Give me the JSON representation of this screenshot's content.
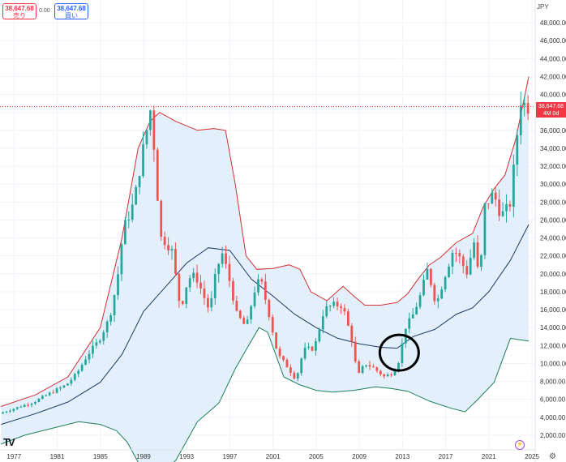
{
  "toolbar": {
    "sell_price": "38,647.68",
    "sell_label": "売り",
    "spread": "0.00",
    "buy_price": "38,647.68",
    "buy_label": "買い"
  },
  "currency": "JPY",
  "last_price": {
    "value": "38,647.68",
    "interval": "4M 0d"
  },
  "colors": {
    "up": "#26a69a",
    "down": "#ef5350",
    "upper_band": "#d32f2f",
    "lower_band": "#1b7f5a",
    "middle_band": "#1e3a5f",
    "band_fill": "#e3f0fb",
    "annotation": "#000000"
  },
  "icons": [
    "tradingview-logo-icon",
    "lightning-icon",
    "gear-icon"
  ],
  "chart_data": {
    "type": "candlestick",
    "interval": "4M",
    "ylim": [
      0,
      50000
    ],
    "y_ticks": [
      {
        "value": 2000,
        "label": "2,000.00"
      },
      {
        "value": 4000,
        "label": "4,000.00"
      },
      {
        "value": 6000,
        "label": "6,000.00"
      },
      {
        "value": 8000,
        "label": "8,000.00"
      },
      {
        "value": 10000,
        "label": "10,000.00"
      },
      {
        "value": 12000,
        "label": "12,000.00"
      },
      {
        "value": 14000,
        "label": "14,000.00"
      },
      {
        "value": 16000,
        "label": "16,000.00"
      },
      {
        "value": 18000,
        "label": "18,000.00"
      },
      {
        "value": 20000,
        "label": "20,000.00"
      },
      {
        "value": 22000,
        "label": "22,000.00"
      },
      {
        "value": 24000,
        "label": "24,000.00"
      },
      {
        "value": 26000,
        "label": "26,000.00"
      },
      {
        "value": 28000,
        "label": "28,000.00"
      },
      {
        "value": 30000,
        "label": "30,000.00"
      },
      {
        "value": 32000,
        "label": "32,000.00"
      },
      {
        "value": 34000,
        "label": "34,000.00"
      },
      {
        "value": 36000,
        "label": "36,000.00"
      },
      {
        "value": 38000,
        "label": "38,000.00"
      },
      {
        "value": 40000,
        "label": "40,000.00"
      },
      {
        "value": 42000,
        "label": "42,000.00"
      },
      {
        "value": 44000,
        "label": "44,000.00"
      },
      {
        "value": 46000,
        "label": "46,000.00"
      },
      {
        "value": 48000,
        "label": "48,000.00"
      }
    ],
    "x_ticks": [
      {
        "year": 1977,
        "label": "1977"
      },
      {
        "year": 1981,
        "label": "1981"
      },
      {
        "year": 1985,
        "label": "1985"
      },
      {
        "year": 1989,
        "label": "1989"
      },
      {
        "year": 1993,
        "label": "1993"
      },
      {
        "year": 1997,
        "label": "1997"
      },
      {
        "year": 2001,
        "label": "2001"
      },
      {
        "year": 2005,
        "label": "2005"
      },
      {
        "year": 2009,
        "label": "2009"
      },
      {
        "year": 2013,
        "label": "2013"
      },
      {
        "year": 2017,
        "label": "2017"
      },
      {
        "year": 2021,
        "label": "2021"
      },
      {
        "year": 2025,
        "label": "2025"
      }
    ],
    "xlim": [
      1975.7,
      2025.3
    ],
    "close_anchors": [
      [
        1975.8,
        4400
      ],
      [
        1977,
        4900
      ],
      [
        1979,
        5700
      ],
      [
        1981,
        7000
      ],
      [
        1982,
        7600
      ],
      [
        1983,
        8900
      ],
      [
        1984,
        11000
      ],
      [
        1985,
        12500
      ],
      [
        1986,
        15000
      ],
      [
        1986.7,
        19000
      ],
      [
        1987.3,
        25000
      ],
      [
        1988.3,
        28000
      ],
      [
        1989,
        33000
      ],
      [
        1989.9,
        38900
      ],
      [
        1990.3,
        31000
      ],
      [
        1990.8,
        24000
      ],
      [
        1991.3,
        23500
      ],
      [
        1991.8,
        22500
      ],
      [
        1992.6,
        16000
      ],
      [
        1993.3,
        19500
      ],
      [
        1994,
        19800
      ],
      [
        1995.3,
        15800
      ],
      [
        1995.8,
        19500
      ],
      [
        1996.4,
        22500
      ],
      [
        1997,
        20000
      ],
      [
        1997.8,
        15500
      ],
      [
        1998.7,
        14000
      ],
      [
        1999.4,
        18000
      ],
      [
        2000,
        19500
      ],
      [
        2000.8,
        15500
      ],
      [
        2001.6,
        11000
      ],
      [
        2002.6,
        9500
      ],
      [
        2003.3,
        8200
      ],
      [
        2004,
        11500
      ],
      [
        2005,
        11700
      ],
      [
        2005.9,
        16000
      ],
      [
        2006.7,
        16500
      ],
      [
        2007.6,
        16500
      ],
      [
        2008.5,
        12500
      ],
      [
        2009,
        8500
      ],
      [
        2009.7,
        10000
      ],
      [
        2010.5,
        9500
      ],
      [
        2011.5,
        8500
      ],
      [
        2012.3,
        9000
      ],
      [
        2012.9,
        10500
      ],
      [
        2013.4,
        14000
      ],
      [
        2014,
        15000
      ],
      [
        2014.8,
        17500
      ],
      [
        2015.5,
        20500
      ],
      [
        2016.3,
        16500
      ],
      [
        2017,
        19500
      ],
      [
        2017.9,
        22800
      ],
      [
        2018.6,
        21500
      ],
      [
        2019.1,
        20000
      ],
      [
        2019.8,
        23500
      ],
      [
        2020.3,
        19000
      ],
      [
        2020.8,
        27500
      ],
      [
        2021.6,
        29000
      ],
      [
        2022.3,
        26500
      ],
      [
        2023.1,
        27500
      ],
      [
        2023.6,
        33000
      ],
      [
        2024.1,
        39500
      ],
      [
        2024.6,
        38647.68
      ]
    ],
    "upper_band": [
      [
        1975.8,
        5200
      ],
      [
        1979,
        6500
      ],
      [
        1982,
        8500
      ],
      [
        1985,
        14000
      ],
      [
        1987,
        24000
      ],
      [
        1988.5,
        34000
      ],
      [
        1989.6,
        37000
      ],
      [
        1990.5,
        38000
      ],
      [
        1992,
        37000
      ],
      [
        1994,
        36000
      ],
      [
        1995.5,
        36200
      ],
      [
        1996.6,
        36000
      ],
      [
        1997.5,
        30000
      ],
      [
        1998.5,
        22000
      ],
      [
        1999.5,
        20500
      ],
      [
        2001,
        20600
      ],
      [
        2002.5,
        21000
      ],
      [
        2003.5,
        20500
      ],
      [
        2004.5,
        18000
      ],
      [
        2006,
        17000
      ],
      [
        2007.5,
        18600
      ],
      [
        2008.5,
        17500
      ],
      [
        2009.5,
        16500
      ],
      [
        2011,
        16500
      ],
      [
        2012.5,
        16800
      ],
      [
        2013.5,
        17800
      ],
      [
        2014.5,
        19500
      ],
      [
        2015.5,
        21000
      ],
      [
        2016.5,
        21800
      ],
      [
        2018,
        23500
      ],
      [
        2019.5,
        24500
      ],
      [
        2020.5,
        27500
      ],
      [
        2021.5,
        29500
      ],
      [
        2022.5,
        31000
      ],
      [
        2023.5,
        35000
      ],
      [
        2024.7,
        42000
      ]
    ],
    "middle_band": [
      [
        1975.8,
        3200
      ],
      [
        1979,
        4400
      ],
      [
        1982,
        5700
      ],
      [
        1985,
        7900
      ],
      [
        1987,
        11000
      ],
      [
        1989,
        15800
      ],
      [
        1991,
        18500
      ],
      [
        1993,
        21200
      ],
      [
        1995,
        22900
      ],
      [
        1997,
        22600
      ],
      [
        1999,
        19400
      ],
      [
        2001,
        17500
      ],
      [
        2003,
        15500
      ],
      [
        2005,
        14000
      ],
      [
        2007,
        12800
      ],
      [
        2009,
        12200
      ],
      [
        2011,
        11800
      ],
      [
        2012.5,
        11700
      ],
      [
        2014,
        13000
      ],
      [
        2016,
        13800
      ],
      [
        2018,
        15500
      ],
      [
        2019.5,
        16200
      ],
      [
        2021,
        18000
      ],
      [
        2023,
        21500
      ],
      [
        2024.7,
        25500
      ]
    ],
    "lower_band": [
      [
        1975.8,
        1000
      ],
      [
        1978,
        2000
      ],
      [
        1981,
        2900
      ],
      [
        1983,
        3500
      ],
      [
        1985,
        3200
      ],
      [
        1986.5,
        2500
      ],
      [
        1987.5,
        1200
      ],
      [
        1988.5,
        -1000
      ],
      [
        1990,
        -3000
      ],
      [
        1992,
        -800
      ],
      [
        1994,
        3500
      ],
      [
        1996,
        5600
      ],
      [
        1997.5,
        9400
      ],
      [
        1998.5,
        11500
      ],
      [
        1999.7,
        14000
      ],
      [
        2000.5,
        13500
      ],
      [
        2002,
        8500
      ],
      [
        2003.5,
        7600
      ],
      [
        2005,
        7000
      ],
      [
        2006.5,
        6800
      ],
      [
        2008.5,
        7000
      ],
      [
        2010.5,
        7400
      ],
      [
        2012,
        7200
      ],
      [
        2013.5,
        6900
      ],
      [
        2015.5,
        5800
      ],
      [
        2017.5,
        5000
      ],
      [
        2018.8,
        4600
      ],
      [
        2020,
        6000
      ],
      [
        2021.5,
        7900
      ],
      [
        2023,
        12800
      ],
      [
        2024.7,
        12500
      ]
    ],
    "annotation": {
      "type": "circle",
      "center_year": 2012.7,
      "center_value": 11200
    }
  }
}
